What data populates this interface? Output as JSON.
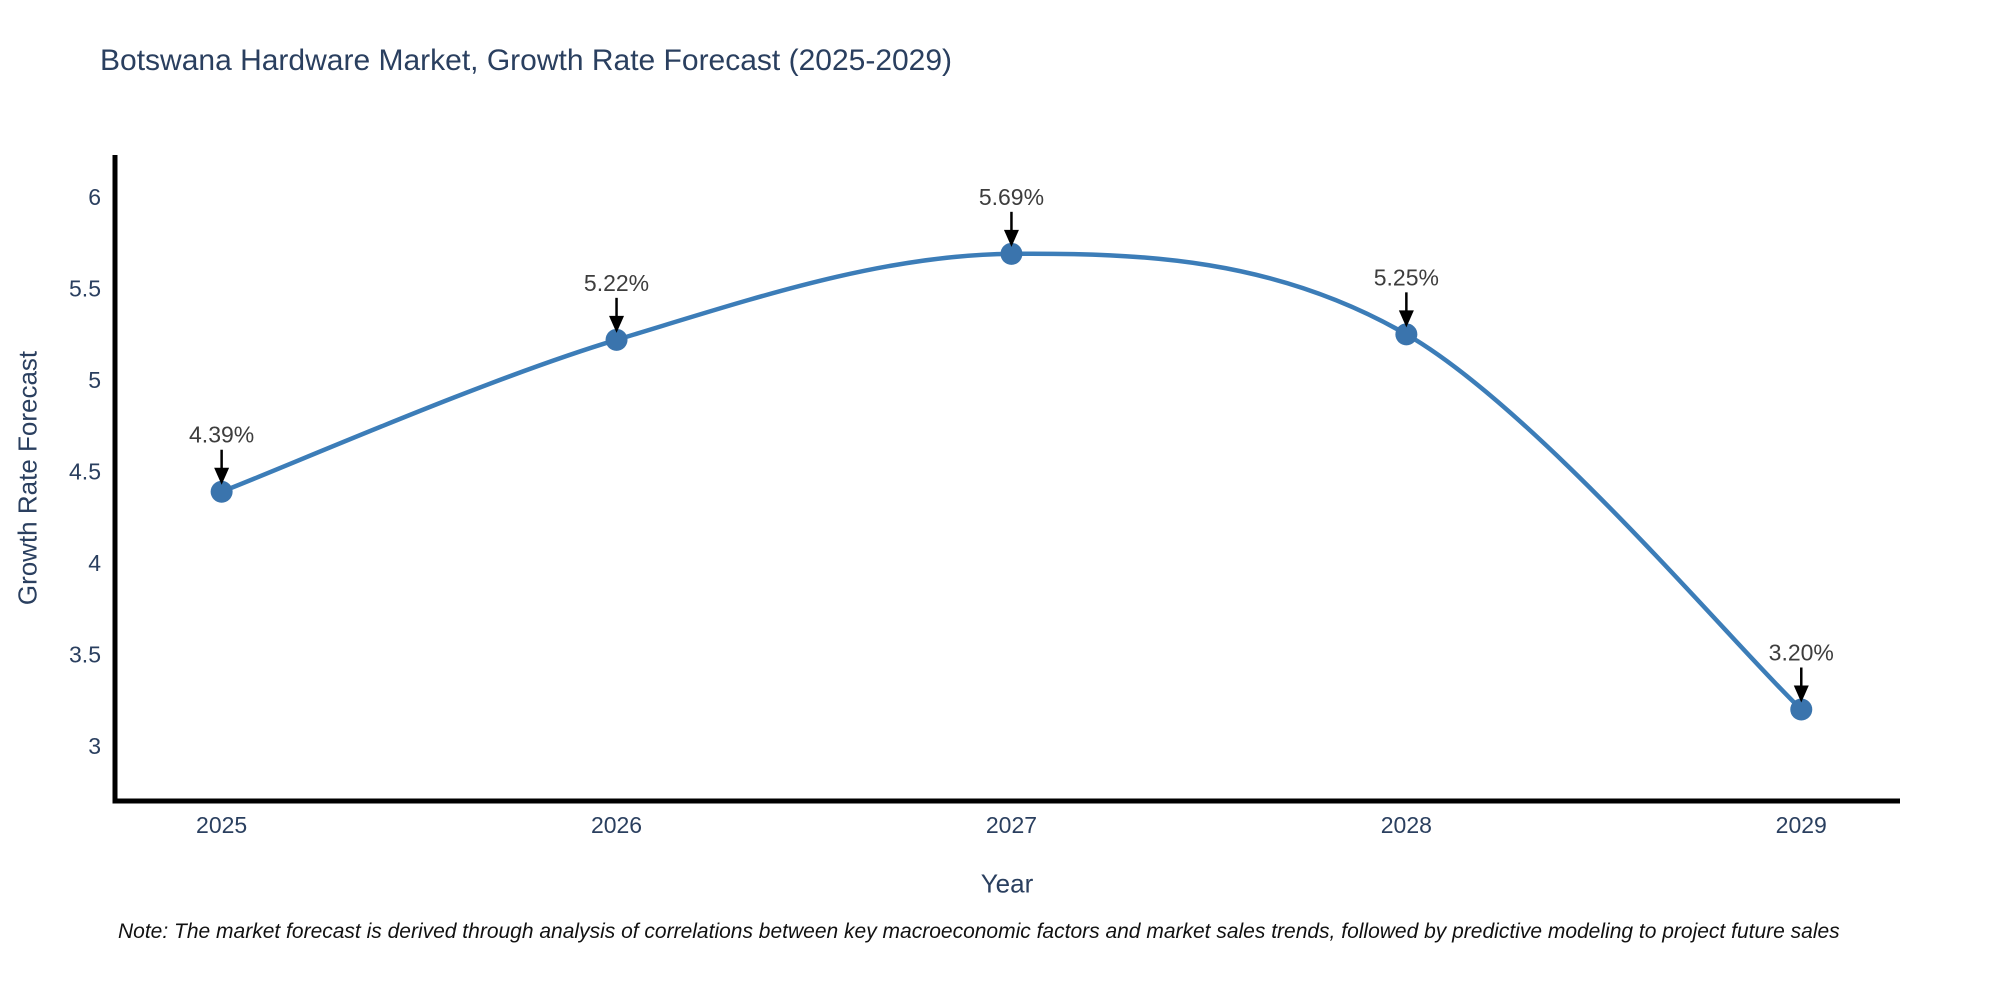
{
  "title": {
    "text": "Botswana Hardware Market, Growth Rate Forecast (2025-2029)",
    "color": "#2a3f5f"
  },
  "note": {
    "text": "Note: The market forecast is derived through analysis of correlations between key macroeconomic factors and market sales trends, followed by predictive modeling to project future sales"
  },
  "chart_data": {
    "type": "line",
    "title": "Botswana Hardware Market, Growth Rate Forecast (2025-2029)",
    "xlabel": "Year",
    "ylabel": "Growth Rate Forecast",
    "x": [
      2025,
      2026,
      2027,
      2028,
      2029
    ],
    "series": [
      {
        "name": "Growth Rate Forecast",
        "values": [
          4.39,
          5.22,
          5.69,
          5.25,
          3.2
        ]
      }
    ],
    "point_labels": [
      "4.39%",
      "5.22%",
      "5.69%",
      "5.25%",
      "3.20%"
    ],
    "yticks": [
      3,
      3.5,
      4,
      4.5,
      5,
      5.5,
      6
    ],
    "ylim": [
      2.7,
      6.23
    ],
    "xlim": [
      2024.73,
      2029.25
    ],
    "grid": false,
    "legend": false,
    "line_shape": "spline",
    "colors": {
      "line": "#3c7db8",
      "marker": "#3a74ad",
      "axis": "#000000",
      "tick_label": "#2a3f5f",
      "annotation_text": "#3d3d3d",
      "arrow": "#000000",
      "background": "#ffffff"
    }
  }
}
